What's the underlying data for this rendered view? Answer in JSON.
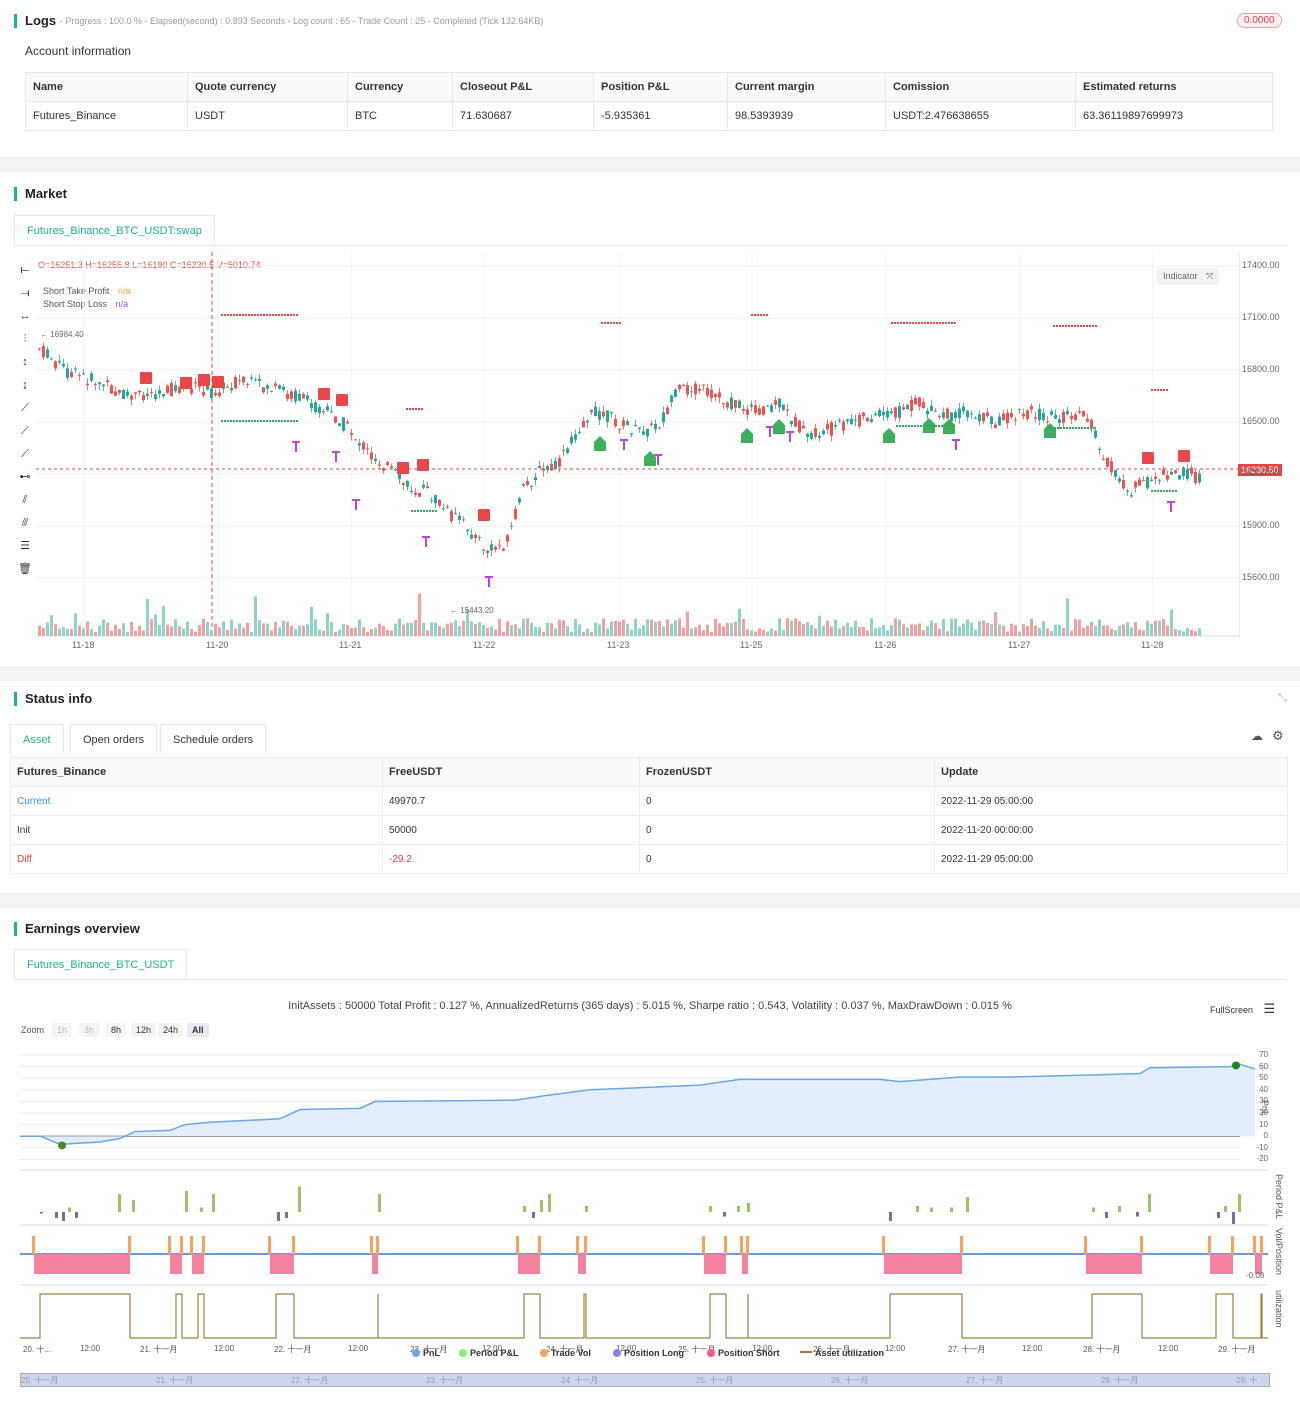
{
  "logs": {
    "title": "Logs",
    "summary": "- Progress : 100.0 % - Elapsed(second) : 0.893  Seconds - Log count : 65 - Trade Count : 25 - Completed (Tick 132.64KB)",
    "badge": "0.0000"
  },
  "account": {
    "title": "Account information",
    "headers": [
      "Name",
      "Quote currency",
      "Currency",
      "Closeout P&L",
      "Position P&L",
      "Current margin",
      "Comission",
      "Estimated returns"
    ],
    "row": [
      "Futures_Binance",
      "USDT",
      "BTC",
      "71.630687",
      "-5.935361",
      "98.5393939",
      "USDT:2.476638655",
      "63.36119897699973"
    ]
  },
  "market": {
    "title": "Market",
    "tab": "Futures_Binance_BTC_USDT:swap",
    "ohlc": "O=16251.3 H=16255.8 L=16190 C=16230.5 V=5010.74",
    "legend": [
      {
        "label": "Short Take Profit",
        "value": "n/a",
        "color": "#f0a030"
      },
      {
        "label": "Short Stop Loss",
        "value": "n/a",
        "color": "#a050d0"
      }
    ],
    "indicator_btn": "Indicator",
    "price_tag": "16230.50",
    "high_label": "16984.40",
    "low_label": "15443.20",
    "y_ticks": [
      "17400.00",
      "17100.00",
      "16800.00",
      "16500.00",
      "16200.00",
      "15900.00",
      "15600.00"
    ],
    "x_ticks": [
      "11-18",
      "11-20",
      "11-21",
      "11-22",
      "11-23",
      "11-25",
      "11-26",
      "11-27",
      "11-28"
    ]
  },
  "status": {
    "title": "Status info",
    "tabs": [
      "Asset",
      "Open orders",
      "Schedule orders"
    ],
    "headers": [
      "Futures_Binance",
      "FreeUSDT",
      "FrozenUSDT",
      "Update"
    ],
    "rows": [
      {
        "name": "Current",
        "free": "49970.7",
        "frozen": "0",
        "update": "2022-11-29 05:00:00"
      },
      {
        "name": "Init",
        "free": "50000",
        "frozen": "0",
        "update": "2022-11-20 00:00:00"
      },
      {
        "name": "Diff",
        "free": "-29.2",
        "frozen": "0",
        "update": "2022-11-29 05:00:00"
      }
    ]
  },
  "earnings": {
    "title": "Earnings overview",
    "tab": "Futures_Binance_BTC_USDT",
    "summary": "InitAssets : 50000 Total Profit : 0.127 %, AnnualizedReturns (365 days) : 5.015 %, Sharpe ratio : 0.543, Volatility : 0.037 %, MaxDrawDown : 0.015 %",
    "fullscreen": "FullScreen",
    "zoom_label": "Zoom",
    "zoom_buttons": [
      "1h",
      "3h",
      "8h",
      "12h",
      "24h",
      "All"
    ],
    "pnl_ticks": [
      "70",
      "60",
      "50",
      "40",
      "30",
      "20",
      "10",
      "0",
      "-10",
      "-20"
    ],
    "axis_pnl": "PnL",
    "axis_period": "Period P&L",
    "axis_vol": "Vol/Position",
    "axis_util": "utilization",
    "vol_tick": "-0.08",
    "x_ticks": [
      "20. 十...",
      "12:00",
      "21. 十一月",
      "12:00",
      "22. 十一月",
      "12:00",
      "23. 十一月",
      "12:00",
      "24. 十一月",
      "12:00",
      "25. 十一月",
      "12:00",
      "26. 十一月",
      "12:00",
      "27. 十一月",
      "12:00",
      "28. 十一月",
      "12:00",
      "29. 十一月"
    ],
    "nav_ticks": [
      "20. 十一月",
      "21. 十一月",
      "22. 十一月",
      "23. 十一月",
      "24. 十一月",
      "25. 十一月",
      "26. 十一月",
      "27. 十一月",
      "28. 十一月",
      "29. 十"
    ],
    "legend": [
      {
        "label": "PnL",
        "color": "#6aa6e6"
      },
      {
        "label": "Period P&L",
        "color": "#90ed7d"
      },
      {
        "label": "Trade Vol",
        "color": "#f7a35c"
      },
      {
        "label": "Position Long",
        "color": "#8085e9"
      },
      {
        "label": "Position Short",
        "color": "#f15c80"
      },
      {
        "label": "Asset utilization",
        "color": "#a08040"
      }
    ]
  }
}
